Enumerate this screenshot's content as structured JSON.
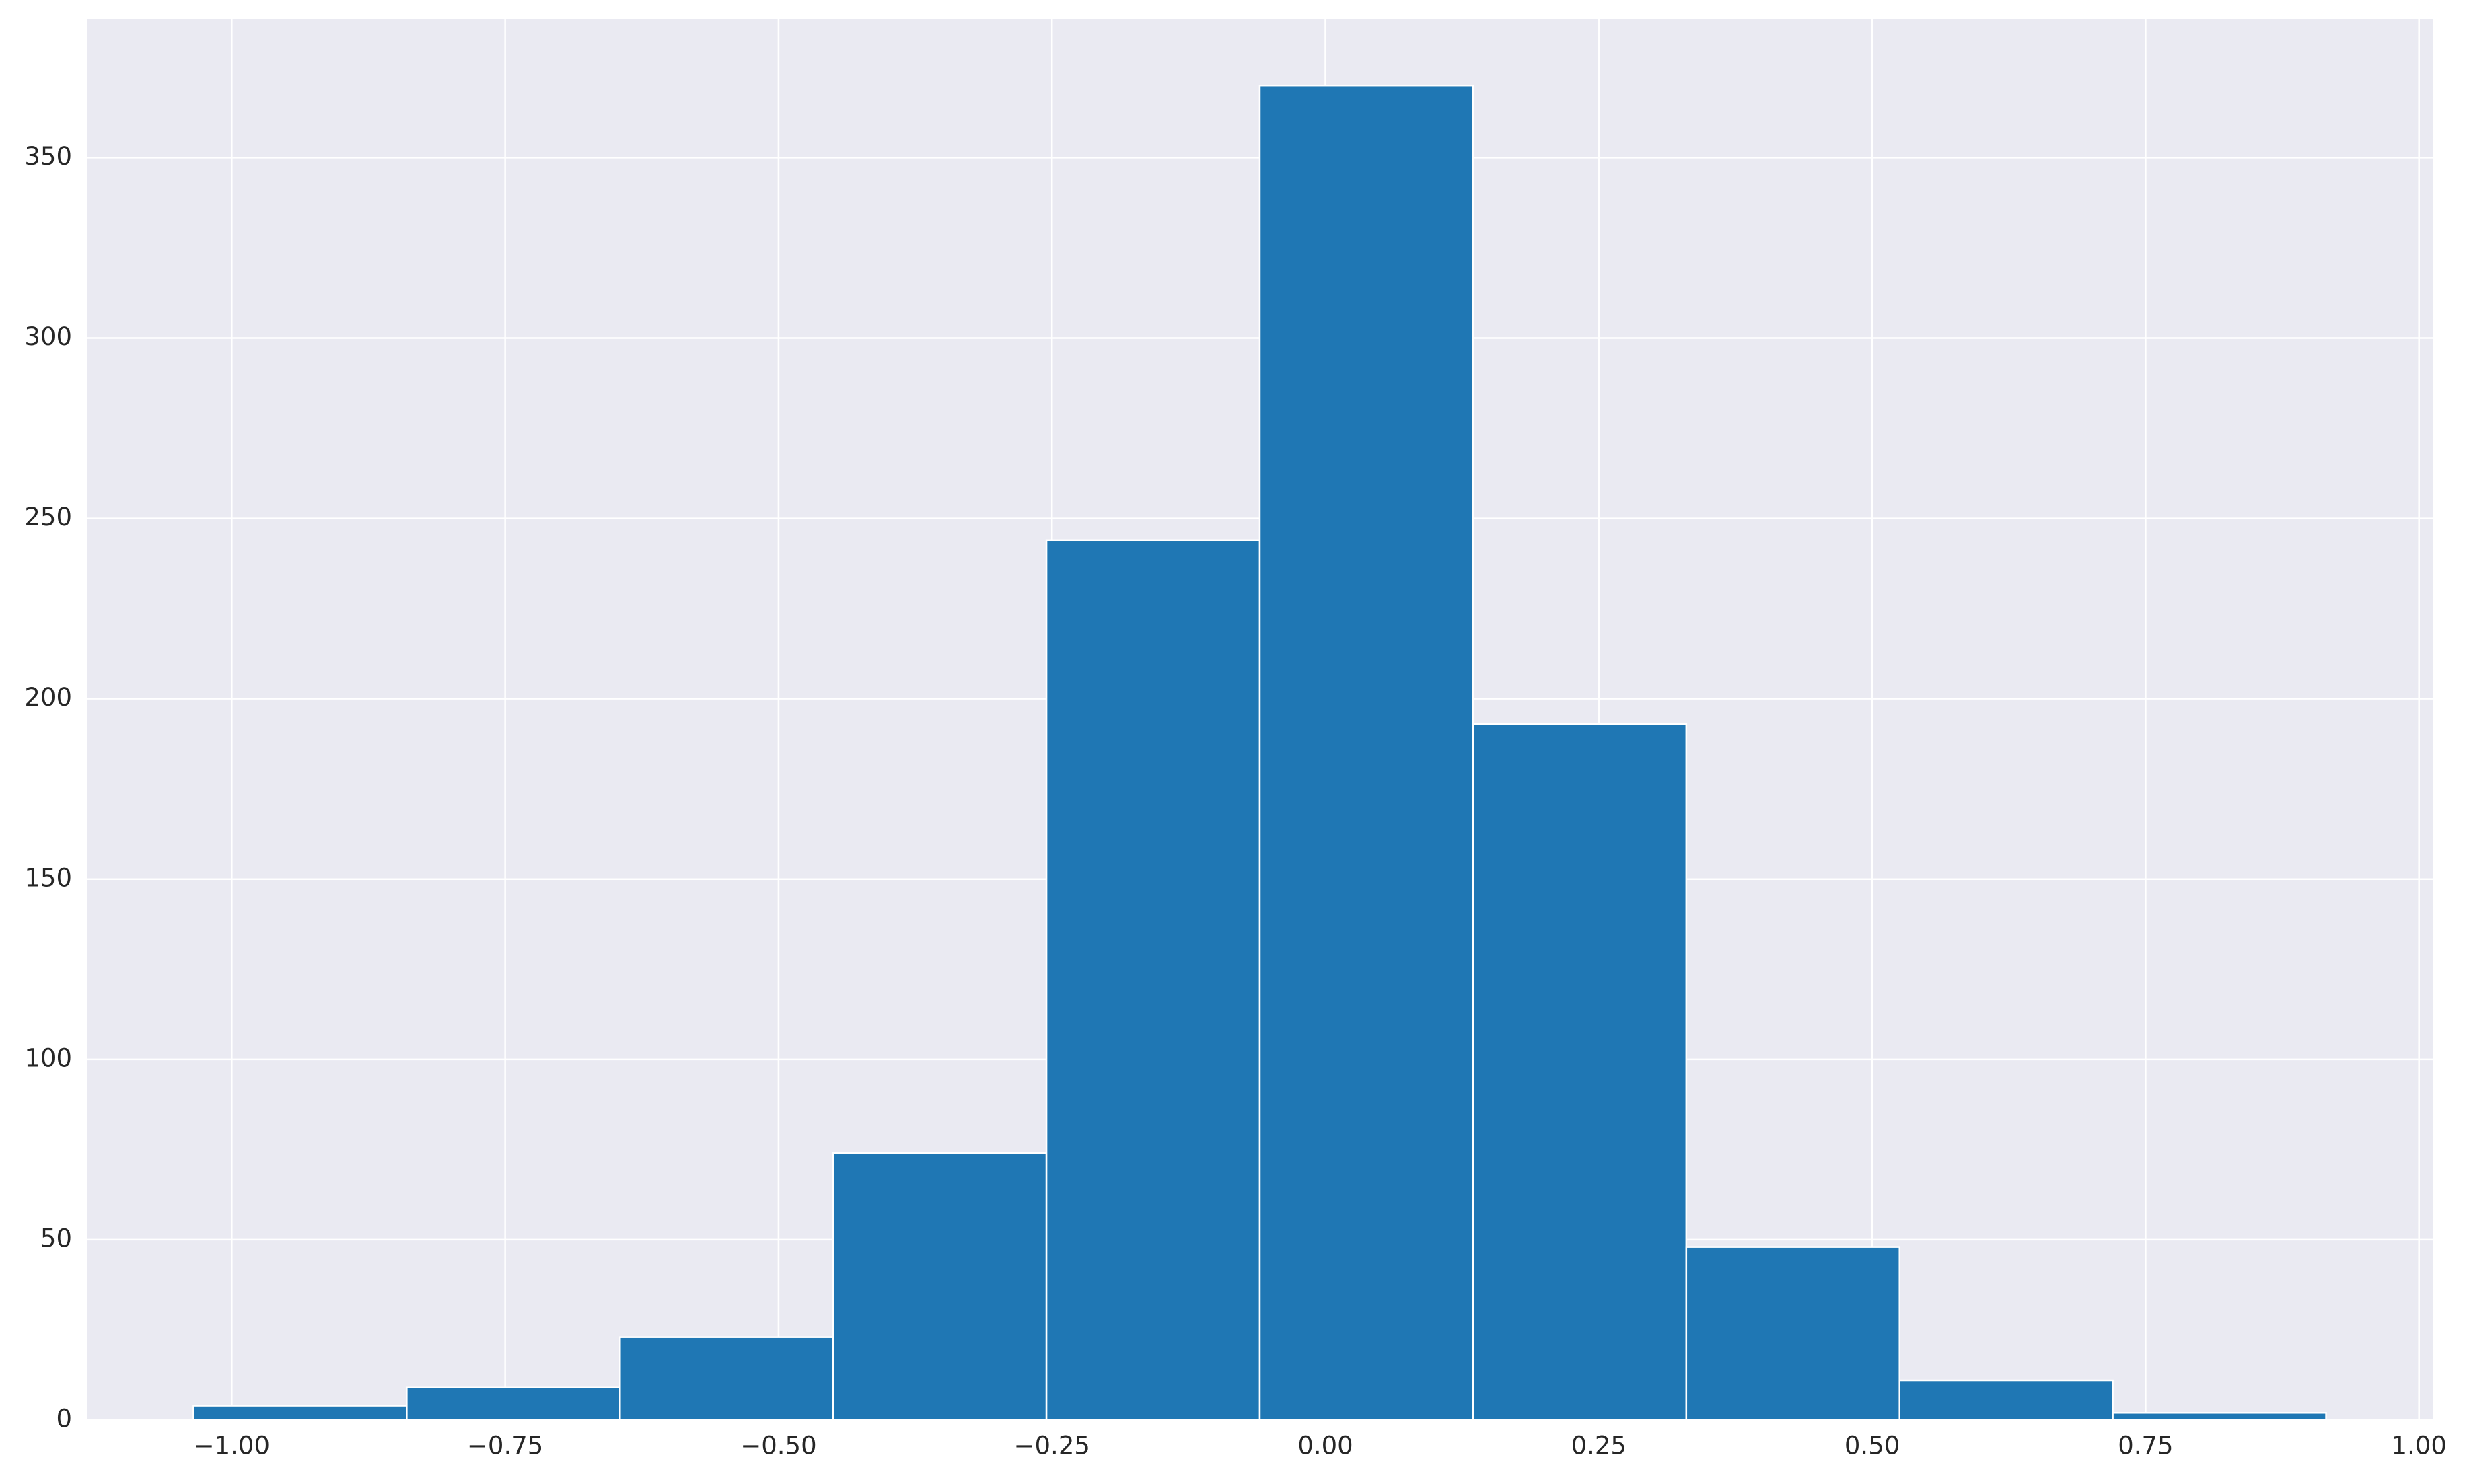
{
  "chart_data": {
    "type": "histogram",
    "bins": [
      -1.035,
      -0.84,
      -0.645,
      -0.45,
      -0.255,
      -0.06,
      0.135,
      0.33,
      0.525,
      0.72,
      0.915
    ],
    "counts": [
      4,
      9,
      23,
      74,
      244,
      370,
      193,
      48,
      11,
      2
    ],
    "color": "#1f77b4",
    "xlim": [
      -1.1325,
      1.0125
    ],
    "xticks": [
      {
        "value": -1,
        "label": "−1.00"
      },
      {
        "value": -0.75,
        "label": "−0.75"
      },
      {
        "value": -0.5,
        "label": "−0.50"
      },
      {
        "value": -0.25,
        "label": "−0.25"
      },
      {
        "value": 0,
        "label": "0.00"
      },
      {
        "value": 0.25,
        "label": "0.25"
      },
      {
        "value": 0.5,
        "label": "0.50"
      },
      {
        "value": 0.75,
        "label": "0.75"
      },
      {
        "value": 1,
        "label": "1.00"
      }
    ],
    "ylim": [
      0,
      388.5
    ],
    "yticks": [
      0,
      50,
      100,
      150,
      200,
      250,
      300,
      350
    ],
    "grid": true
  }
}
